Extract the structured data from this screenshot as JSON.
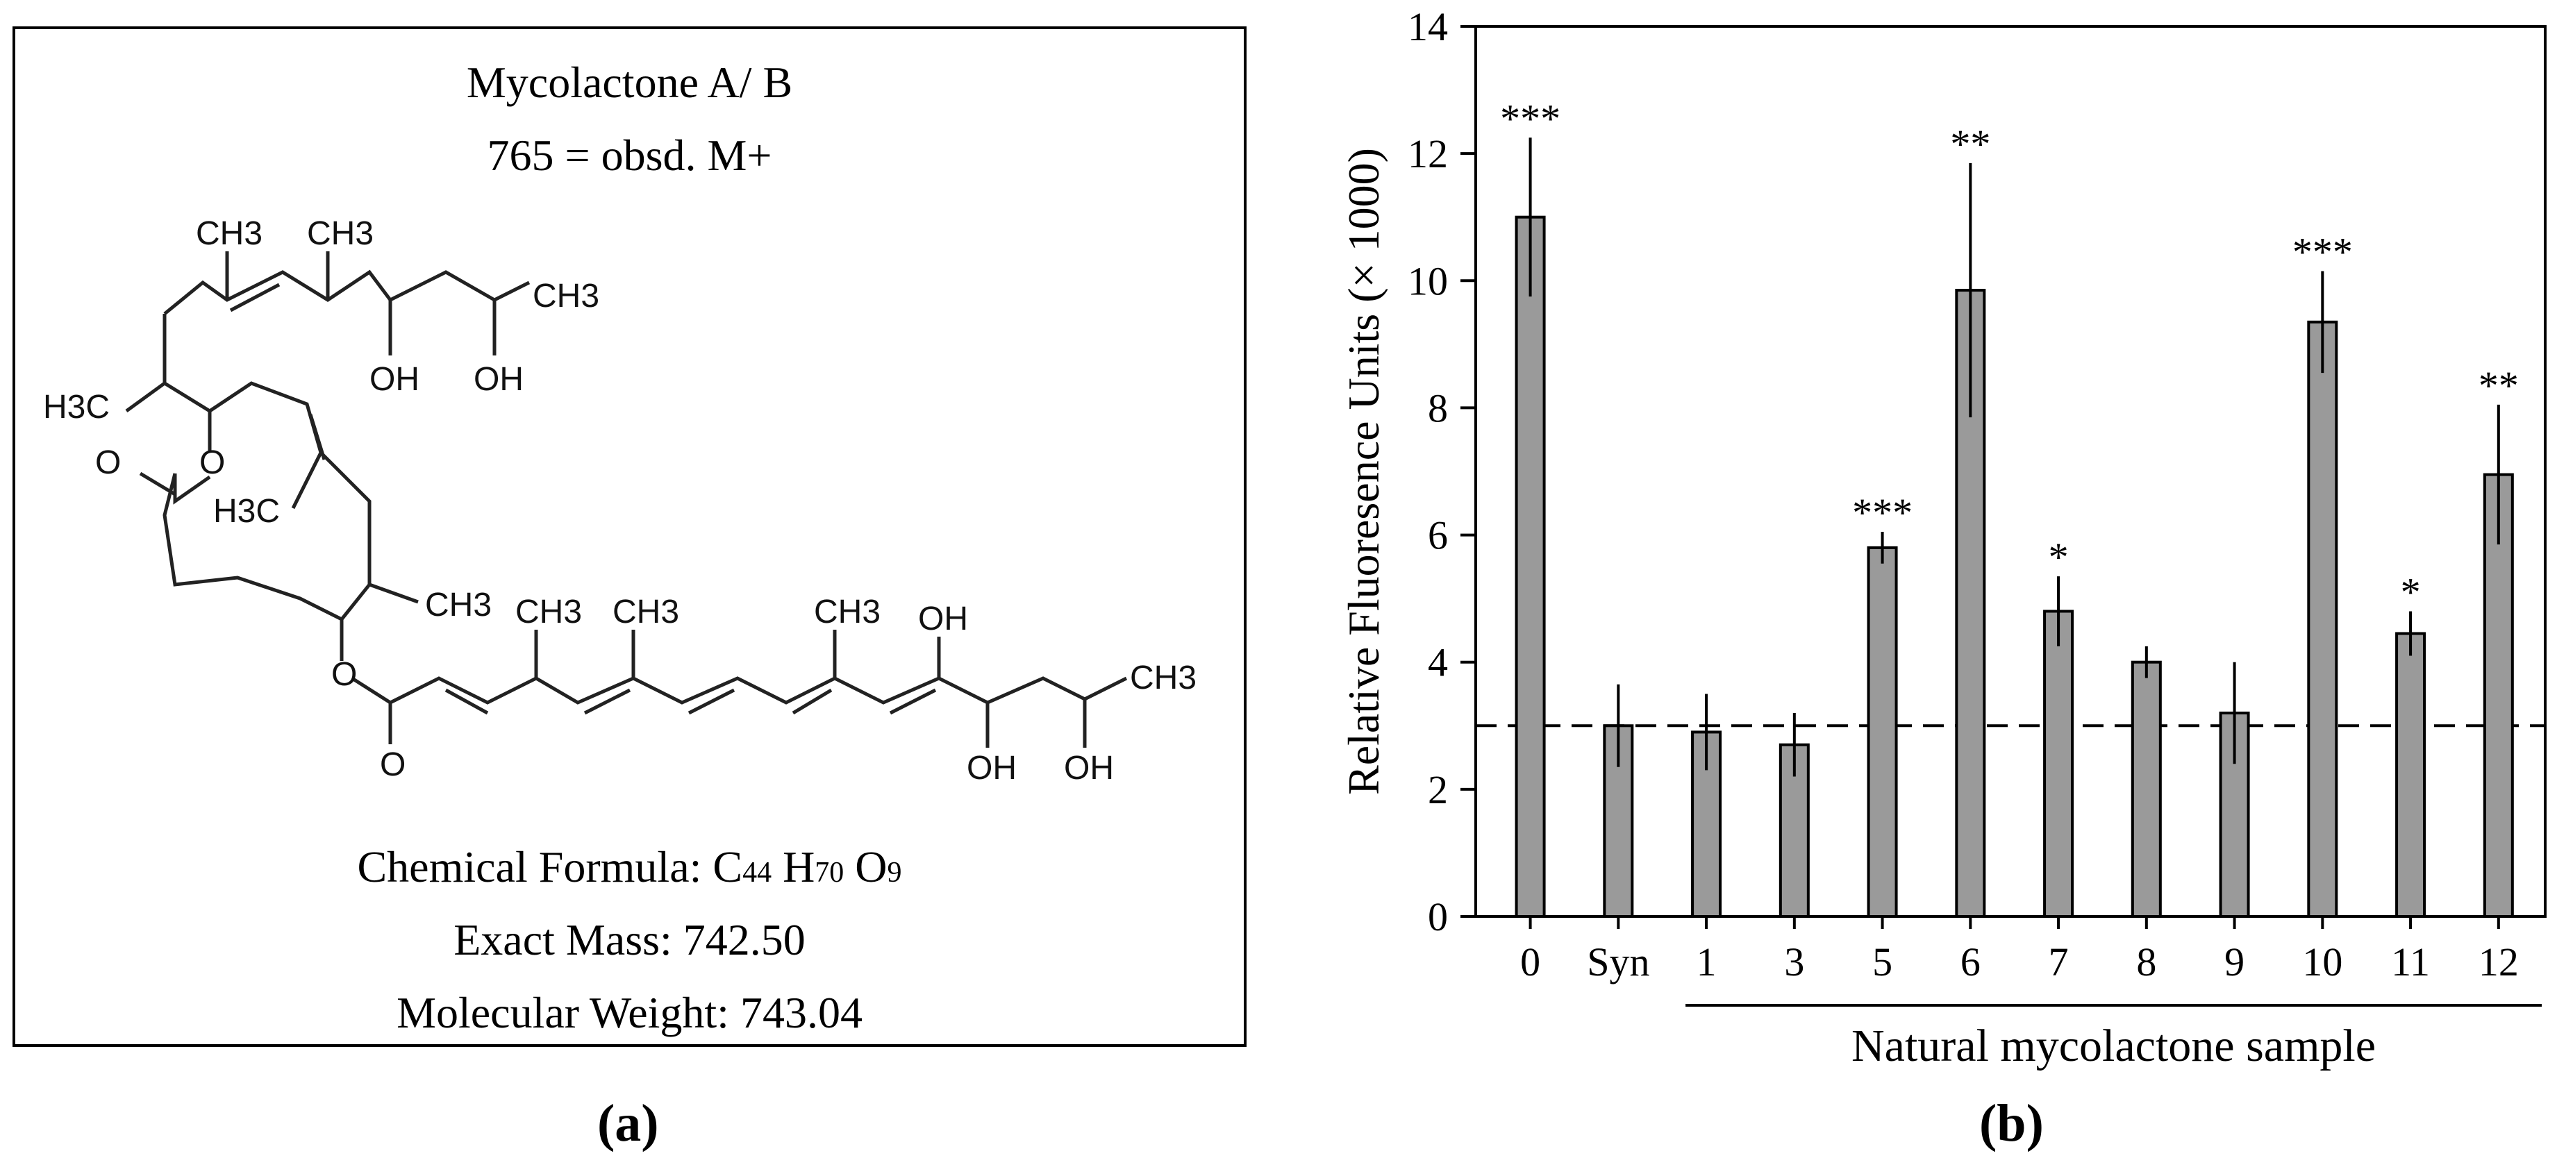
{
  "panel_a": {
    "title": "Mycolactone A/ B",
    "subtitle": "765 = obsd. M+",
    "formula_label": "Chemical Formula: C",
    "formula_c": "44",
    "formula_h_symbol": "H",
    "formula_h": "70",
    "formula_o_symbol": "O",
    "formula_o": "9",
    "exact_mass": "Exact Mass: 742.50",
    "molecular_weight": "Molecular Weight: 743.04",
    "structure_labels": {
      "ch3_1": "CH3",
      "ch3_2": "CH3",
      "ch3_3": "CH3",
      "oh_1": "OH",
      "oh_2": "OH",
      "h3c_1": "H3C",
      "o_ring": "O",
      "o_carbonyl": "O",
      "h3c_2": "H3C",
      "ch3_4": "CH3",
      "o_ester": "O",
      "o_ester_carbonyl": "O",
      "ch3_5": "CH3",
      "ch3_6": "CH3",
      "ch3_7": "CH3",
      "oh_3": "OH",
      "oh_4": "OH",
      "oh_5": "OH",
      "ch3_8": "CH3"
    },
    "label": "(a)"
  },
  "panel_b": {
    "label": "(b)",
    "group_label": "Natural mycolactone sample"
  },
  "chart_data": {
    "type": "bar",
    "ylabel": "Relative Fluoresence Units (× 1000)",
    "xlabel": "Natural mycolactone sample",
    "ylim": [
      0,
      14
    ],
    "yticks": [
      0,
      2,
      4,
      6,
      8,
      10,
      12,
      14
    ],
    "categories": [
      "0",
      "Syn",
      "1",
      "3",
      "5",
      "6",
      "7",
      "8",
      "9",
      "10",
      "11",
      "12"
    ],
    "values": [
      11.0,
      3.0,
      2.9,
      2.7,
      5.8,
      9.85,
      4.8,
      4.0,
      3.2,
      9.35,
      4.45,
      6.95
    ],
    "errors": [
      1.25,
      0.65,
      0.6,
      0.5,
      0.25,
      2.0,
      0.55,
      0.25,
      0.8,
      0.8,
      0.35,
      1.1
    ],
    "significance": [
      "***",
      "",
      "",
      "",
      "***",
      "**",
      "*",
      "",
      "",
      "***",
      "*",
      "**"
    ],
    "reference_line": 3.0,
    "bar_color": "#9a9a9a",
    "grid": false
  }
}
